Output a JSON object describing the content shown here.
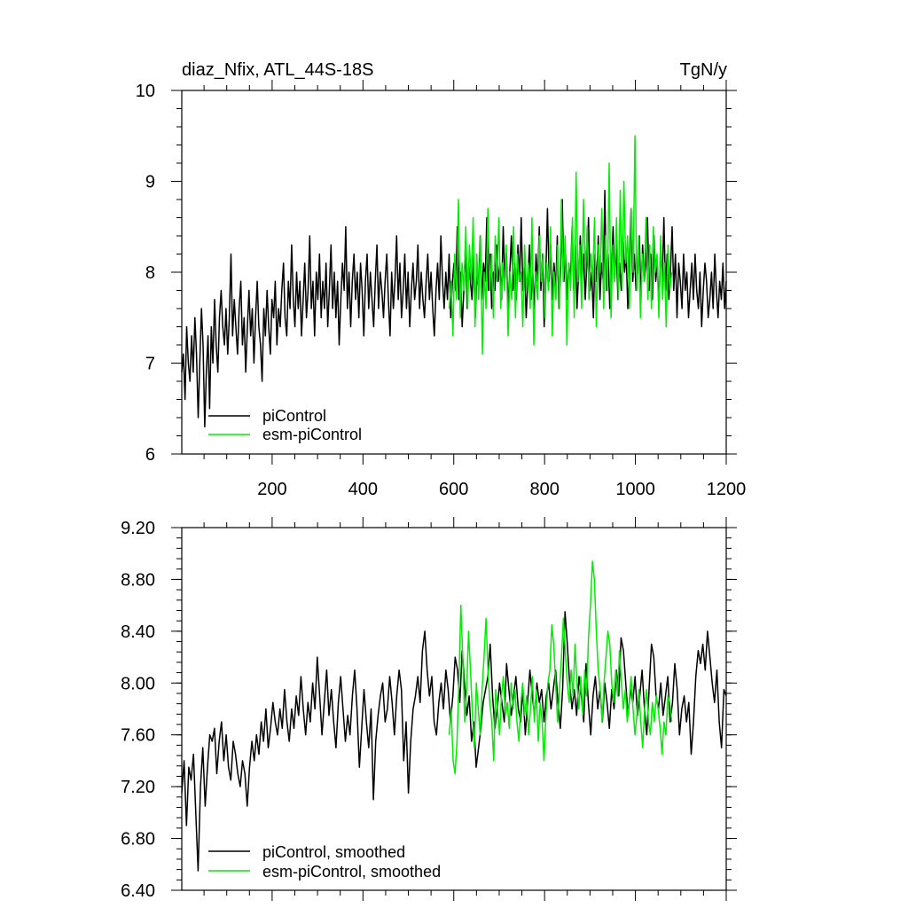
{
  "colors": {
    "piControl": "#000000",
    "esm_piControl": "#00ee00"
  },
  "chart_data": [
    {
      "type": "line",
      "title": "diaz_Nfix, ATL_44S-18S",
      "units": "TgN/y",
      "xlabel": "",
      "ylabel": "",
      "xlim": [
        1,
        1200
      ],
      "ylim": [
        6,
        10
      ],
      "x_ticks": [
        "200",
        "400",
        "600",
        "800",
        "1000",
        "1200"
      ],
      "y_ticks": [
        "6",
        "7",
        "8",
        "9",
        "10"
      ],
      "grid": false,
      "legend": "bottom-left",
      "series": [
        {
          "name": "piControl",
          "color": "#000000",
          "x_start": 1,
          "x_end": 1200,
          "values": [
            6.9,
            7.1,
            6.6,
            7.4,
            7.0,
            6.8,
            7.3,
            6.9,
            7.5,
            7.1,
            6.4,
            7.0,
            7.6,
            7.2,
            6.3,
            6.9,
            7.3,
            6.5,
            7.4,
            7.0,
            7.7,
            7.2,
            6.9,
            7.5,
            7.8,
            7.4,
            7.2,
            7.6,
            7.1,
            7.5,
            8.2,
            7.3,
            7.7,
            7.4,
            7.1,
            7.6,
            7.9,
            7.2,
            7.5,
            6.9,
            7.4,
            7.8,
            7.3,
            7.6,
            7.0,
            7.5,
            7.9,
            7.4,
            7.2,
            6.8,
            7.6,
            7.3,
            7.8,
            7.4,
            7.1,
            7.7,
            7.5,
            7.9,
            7.2,
            7.6,
            7.4,
            7.8,
            8.1,
            7.5,
            7.3,
            7.9,
            7.6,
            8.3,
            7.7,
            7.4,
            8.0,
            7.6,
            7.9,
            7.3,
            7.7,
            8.1,
            7.5,
            7.8,
            8.4,
            7.6,
            7.9,
            7.3,
            8.0,
            7.7,
            8.2,
            7.5,
            7.9,
            7.6,
            8.1,
            7.4,
            7.8,
            8.3,
            7.6,
            8.0,
            7.5,
            7.9,
            7.2,
            7.7,
            8.1,
            7.8,
            8.5,
            7.6,
            8.0,
            7.4,
            7.9,
            8.2,
            7.7,
            8.0,
            7.5,
            8.1,
            7.8,
            7.3,
            7.9,
            8.2,
            7.6,
            8.0,
            7.7,
            7.4,
            7.9,
            8.3,
            7.6,
            8.0,
            7.8,
            7.5,
            7.9,
            8.2,
            7.7,
            7.3,
            8.0,
            7.6,
            7.9,
            8.4,
            7.7,
            8.1,
            7.5,
            7.8,
            8.2,
            7.6,
            8.0,
            7.4,
            7.8,
            8.1,
            7.7,
            7.9,
            8.3,
            7.6,
            8.0,
            7.7,
            7.5,
            7.9,
            8.2,
            7.7,
            8.0,
            7.6,
            7.3,
            7.8,
            8.1,
            7.7,
            8.4,
            7.9,
            7.6,
            8.0,
            7.7,
            8.2,
            7.5,
            7.9,
            8.1,
            7.8,
            8.5,
            7.7,
            8.0,
            7.4,
            7.8,
            8.3,
            7.6,
            8.1,
            7.9,
            7.7,
            8.2,
            7.5,
            8.0,
            7.8,
            8.4,
            7.7,
            8.1,
            7.9,
            8.6,
            7.8,
            8.2,
            7.6,
            8.0,
            7.8,
            8.3,
            7.9,
            8.1,
            7.7,
            8.5,
            7.9,
            8.2,
            7.6,
            8.0,
            8.4,
            7.8,
            8.1,
            7.7,
            8.3,
            7.9,
            8.6,
            7.8,
            8.1,
            7.5,
            7.9,
            8.3,
            7.7,
            8.0,
            7.6,
            8.2,
            7.9,
            8.5,
            7.8,
            8.2,
            7.4,
            8.0,
            8.7,
            7.9,
            8.3,
            7.7,
            8.1,
            7.8,
            8.4,
            7.6,
            8.0,
            8.8,
            7.9,
            8.2,
            7.7,
            8.1,
            7.9,
            8.5,
            7.8,
            8.3,
            7.6,
            8.0,
            8.4,
            7.9,
            8.2,
            7.7,
            8.1,
            8.6,
            7.8,
            8.0,
            7.5,
            8.2,
            7.9,
            8.4,
            7.7,
            8.1,
            7.9,
            8.9,
            7.8,
            8.2,
            7.6,
            8.0,
            8.5,
            7.9,
            8.3,
            7.7,
            8.1,
            7.8,
            8.4,
            8.0,
            8.2,
            7.6,
            8.1,
            8.7,
            7.9,
            8.2,
            7.8,
            8.0,
            8.4,
            7.7,
            8.3,
            7.9,
            8.1,
            8.6,
            7.8,
            8.2,
            7.7,
            8.4,
            7.9,
            8.1,
            7.6,
            8.3,
            7.9,
            8.6,
            7.8,
            8.2,
            7.7,
            8.0,
            8.5,
            7.8,
            8.2,
            7.5,
            8.1,
            7.9,
            7.6,
            8.2,
            7.8,
            8.0,
            7.5,
            7.8,
            8.1,
            7.7,
            8.2,
            7.8,
            7.6,
            8.0,
            7.4,
            7.8,
            8.1,
            7.9,
            7.5,
            7.7,
            8.0,
            7.6,
            8.2,
            7.8,
            7.5,
            7.9,
            7.7,
            8.1,
            7.6,
            7.9
          ],
          "note_range": [
            1,
            1200
          ]
        },
        {
          "name": "esm-piControl",
          "color": "#00ee00",
          "x_start": 590,
          "x_end": 1080,
          "values": [
            7.6,
            7.9,
            7.3,
            8.2,
            7.7,
            8.8,
            7.5,
            8.1,
            7.8,
            8.5,
            7.6,
            8.3,
            7.9,
            8.6,
            7.4,
            8.2,
            7.7,
            8.4,
            7.1,
            8.0,
            7.6,
            8.7,
            7.8,
            8.2,
            7.5,
            8.4,
            7.9,
            8.6,
            7.6,
            8.1,
            7.8,
            8.3,
            7.3,
            8.0,
            7.7,
            8.5,
            7.5,
            8.2,
            7.9,
            8.0,
            7.4,
            8.3,
            7.8,
            8.1,
            7.6,
            8.6,
            7.2,
            8.0,
            7.7,
            8.4,
            7.9,
            8.2,
            7.5,
            8.1,
            7.8,
            8.5,
            7.3,
            8.0,
            7.7,
            8.3,
            7.6,
            8.8,
            7.9,
            8.4,
            7.2,
            8.1,
            7.8,
            8.6,
            7.5,
            9.1,
            7.9,
            8.3,
            7.6,
            8.8,
            8.0,
            8.5,
            7.7,
            8.2,
            7.9,
            8.6,
            7.4,
            8.3,
            8.0,
            8.7,
            7.6,
            8.4,
            7.8,
            9.2,
            7.5,
            8.3,
            7.9,
            8.6,
            7.7,
            8.9,
            7.8,
            9.0,
            8.1,
            8.4,
            7.6,
            8.7,
            8.0,
            9.5,
            7.8,
            8.4,
            7.5,
            8.2,
            7.9,
            8.6,
            7.7,
            8.3,
            7.6,
            8.5,
            8.0,
            8.2,
            7.5,
            8.4,
            7.7,
            8.1,
            7.4,
            8.3,
            7.8,
            8.0
          ]
        }
      ]
    },
    {
      "type": "line",
      "title": "",
      "xlabel": "",
      "ylabel": "",
      "xlim": [
        1,
        1200
      ],
      "ylim": [
        6.4,
        9.2
      ],
      "y_ticks": [
        "6.40",
        "6.80",
        "7.20",
        "7.60",
        "8.00",
        "8.40",
        "8.80",
        "9.20"
      ],
      "grid": false,
      "legend": "bottom-left",
      "series": [
        {
          "name": "piControl, smoothed",
          "color": "#000000",
          "x_start": 1,
          "x_end": 1200,
          "values": [
            7.15,
            7.4,
            6.9,
            7.35,
            7.25,
            7.45,
            7.0,
            6.55,
            7.2,
            7.5,
            7.05,
            7.35,
            7.6,
            7.55,
            7.65,
            7.3,
            7.55,
            7.7,
            7.4,
            7.6,
            7.35,
            7.25,
            7.55,
            7.45,
            7.3,
            7.2,
            7.4,
            7.3,
            7.05,
            7.35,
            7.55,
            7.4,
            7.6,
            7.45,
            7.7,
            7.55,
            7.8,
            7.5,
            7.65,
            7.85,
            7.7,
            7.6,
            7.8,
            7.65,
            7.95,
            7.7,
            7.55,
            7.8,
            7.65,
            7.9,
            7.75,
            8.05,
            7.8,
            7.6,
            7.85,
            7.7,
            8.0,
            7.8,
            8.2,
            7.9,
            7.6,
            7.85,
            8.1,
            7.75,
            7.95,
            7.7,
            7.5,
            7.85,
            8.05,
            7.8,
            7.55,
            7.75,
            7.6,
            7.9,
            8.1,
            7.8,
            7.35,
            7.65,
            7.95,
            7.7,
            7.5,
            7.8,
            7.1,
            7.55,
            7.75,
            7.9,
            8.0,
            7.7,
            7.8,
            8.05,
            7.85,
            7.6,
            7.9,
            8.1,
            7.95,
            7.4,
            7.7,
            7.15,
            7.55,
            7.8,
            7.9,
            8.05,
            7.85,
            8.25,
            8.4,
            8.1,
            7.9,
            8.05,
            7.7,
            7.6,
            7.85,
            8.0,
            7.8,
            8.1,
            7.95,
            7.7,
            7.9,
            8.2,
            8.1,
            7.85,
            8.25,
            8.0,
            7.75,
            7.9,
            7.55,
            7.7,
            7.35,
            7.5,
            7.65,
            7.85,
            7.95,
            8.05,
            8.3,
            7.9,
            7.65,
            7.8,
            8.0,
            7.85,
            7.7,
            8.15,
            7.95,
            7.75,
            7.9,
            8.05,
            7.8,
            7.7,
            7.95,
            7.6,
            7.85,
            8.1,
            7.9,
            7.75,
            8.0,
            7.85,
            7.95,
            7.7,
            7.9,
            8.0,
            7.8,
            7.95,
            8.1,
            7.85,
            7.65,
            7.95,
            8.55,
            8.3,
            8.0,
            7.8,
            7.95,
            7.75,
            8.05,
            7.9,
            7.7,
            8.15,
            7.85,
            7.6,
            7.9,
            8.05,
            7.8,
            7.95,
            7.7,
            8.0,
            7.85,
            7.65,
            7.95,
            7.8,
            8.1,
            7.9,
            8.35,
            8.25,
            8.0,
            7.75,
            7.95,
            7.85,
            8.05,
            7.75,
            7.9,
            8.1,
            7.8,
            7.6,
            7.95,
            8.3,
            8.2,
            7.9,
            7.8,
            8.0,
            7.75,
            7.9,
            8.05,
            7.7,
            7.85,
            8.15,
            7.95,
            7.6,
            7.8,
            7.9,
            7.7,
            7.85,
            7.45,
            7.7,
            8.05,
            8.25,
            8.15,
            8.3,
            8.1,
            8.4,
            8.2,
            8.0,
            7.85,
            8.1,
            7.7,
            7.5,
            7.95,
            7.9
          ]
        },
        {
          "name": "esm-piControl, smoothed",
          "color": "#00ee00",
          "x_start": 590,
          "x_end": 1080,
          "values": [
            7.6,
            7.8,
            7.4,
            7.3,
            7.55,
            8.0,
            8.6,
            8.2,
            7.7,
            7.95,
            8.4,
            8.1,
            7.75,
            7.5,
            8.0,
            7.8,
            7.6,
            7.95,
            8.2,
            8.5,
            8.1,
            7.85,
            7.7,
            7.4,
            7.95,
            7.8,
            7.6,
            7.9,
            8.05,
            7.75,
            7.85,
            7.65,
            8.0,
            7.8,
            7.95,
            7.7,
            7.55,
            7.85,
            8.0,
            7.75,
            7.9,
            7.6,
            7.8,
            8.05,
            7.7,
            7.95,
            7.55,
            7.85,
            7.7,
            7.4,
            7.75,
            8.0,
            8.1,
            8.45,
            8.3,
            8.0,
            7.7,
            7.95,
            8.2,
            8.5,
            8.25,
            8.0,
            7.85,
            8.1,
            7.9,
            8.3,
            8.0,
            7.8,
            8.05,
            7.75,
            8.1,
            7.9,
            8.35,
            8.6,
            8.94,
            8.8,
            8.4,
            8.1,
            7.95,
            7.7,
            8.0,
            8.2,
            8.4,
            8.3,
            8.0,
            7.85,
            8.1,
            7.9,
            8.25,
            8.0,
            7.8,
            7.95,
            7.7,
            7.85,
            8.05,
            7.8,
            7.6,
            7.75,
            7.95,
            7.7,
            7.5,
            7.8,
            7.95,
            7.7,
            7.6,
            7.85,
            7.7,
            7.9,
            7.8,
            7.65,
            7.45,
            7.7,
            7.6,
            7.9,
            7.85,
            7.7
          ]
        }
      ]
    }
  ]
}
